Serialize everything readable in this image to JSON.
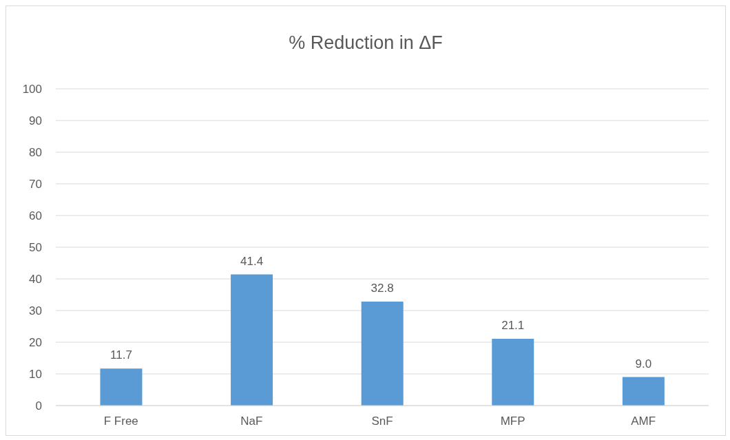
{
  "chart_data": {
    "type": "bar",
    "title": "% Reduction in ΔF",
    "categories": [
      "F Free",
      "NaF",
      "SnF",
      "MFP",
      "AMF"
    ],
    "values": [
      11.7,
      41.4,
      32.8,
      21.1,
      9.0
    ],
    "value_labels": [
      "11.7",
      "41.4",
      "32.8",
      "21.1",
      "9.0"
    ],
    "color": "#5b9bd5",
    "ylim": [
      0,
      100
    ],
    "yticks": [
      0,
      10,
      20,
      30,
      40,
      50,
      60,
      70,
      80,
      90,
      100
    ],
    "grid": "y"
  }
}
